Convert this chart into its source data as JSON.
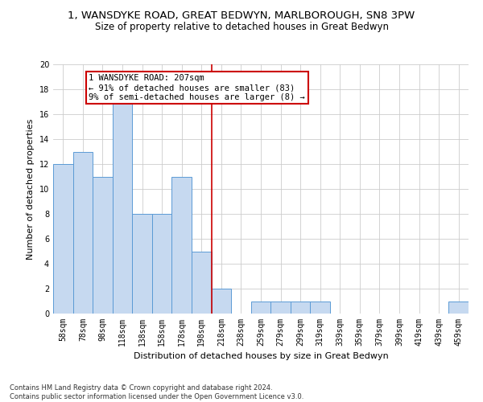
{
  "title": "1, WANSDYKE ROAD, GREAT BEDWYN, MARLBOROUGH, SN8 3PW",
  "subtitle": "Size of property relative to detached houses in Great Bedwyn",
  "xlabel": "Distribution of detached houses by size in Great Bedwyn",
  "ylabel": "Number of detached properties",
  "footer_line1": "Contains HM Land Registry data © Crown copyright and database right 2024.",
  "footer_line2": "Contains public sector information licensed under the Open Government Licence v3.0.",
  "bar_labels": [
    "58sqm",
    "78sqm",
    "98sqm",
    "118sqm",
    "138sqm",
    "158sqm",
    "178sqm",
    "198sqm",
    "218sqm",
    "238sqm",
    "259sqm",
    "279sqm",
    "299sqm",
    "319sqm",
    "339sqm",
    "359sqm",
    "379sqm",
    "399sqm",
    "419sqm",
    "439sqm",
    "459sqm"
  ],
  "bar_values": [
    12,
    13,
    11,
    17,
    8,
    8,
    11,
    5,
    2,
    0,
    1,
    1,
    1,
    1,
    0,
    0,
    0,
    0,
    0,
    0,
    1
  ],
  "bar_color": "#c6d9f0",
  "bar_edgecolor": "#5b9bd5",
  "annotation_text": "1 WANSDYKE ROAD: 207sqm\n← 91% of detached houses are smaller (83)\n9% of semi-detached houses are larger (8) →",
  "vline_x": 7.5,
  "vline_color": "#cc0000",
  "annotation_box_edgecolor": "#cc0000",
  "ylim": [
    0,
    20
  ],
  "yticks": [
    0,
    2,
    4,
    6,
    8,
    10,
    12,
    14,
    16,
    18,
    20
  ],
  "grid_color": "#cccccc",
  "background_color": "#ffffff",
  "title_fontsize": 9.5,
  "subtitle_fontsize": 8.5,
  "label_fontsize": 8,
  "tick_fontsize": 7,
  "footer_fontsize": 6,
  "annotation_fontsize": 7.5
}
